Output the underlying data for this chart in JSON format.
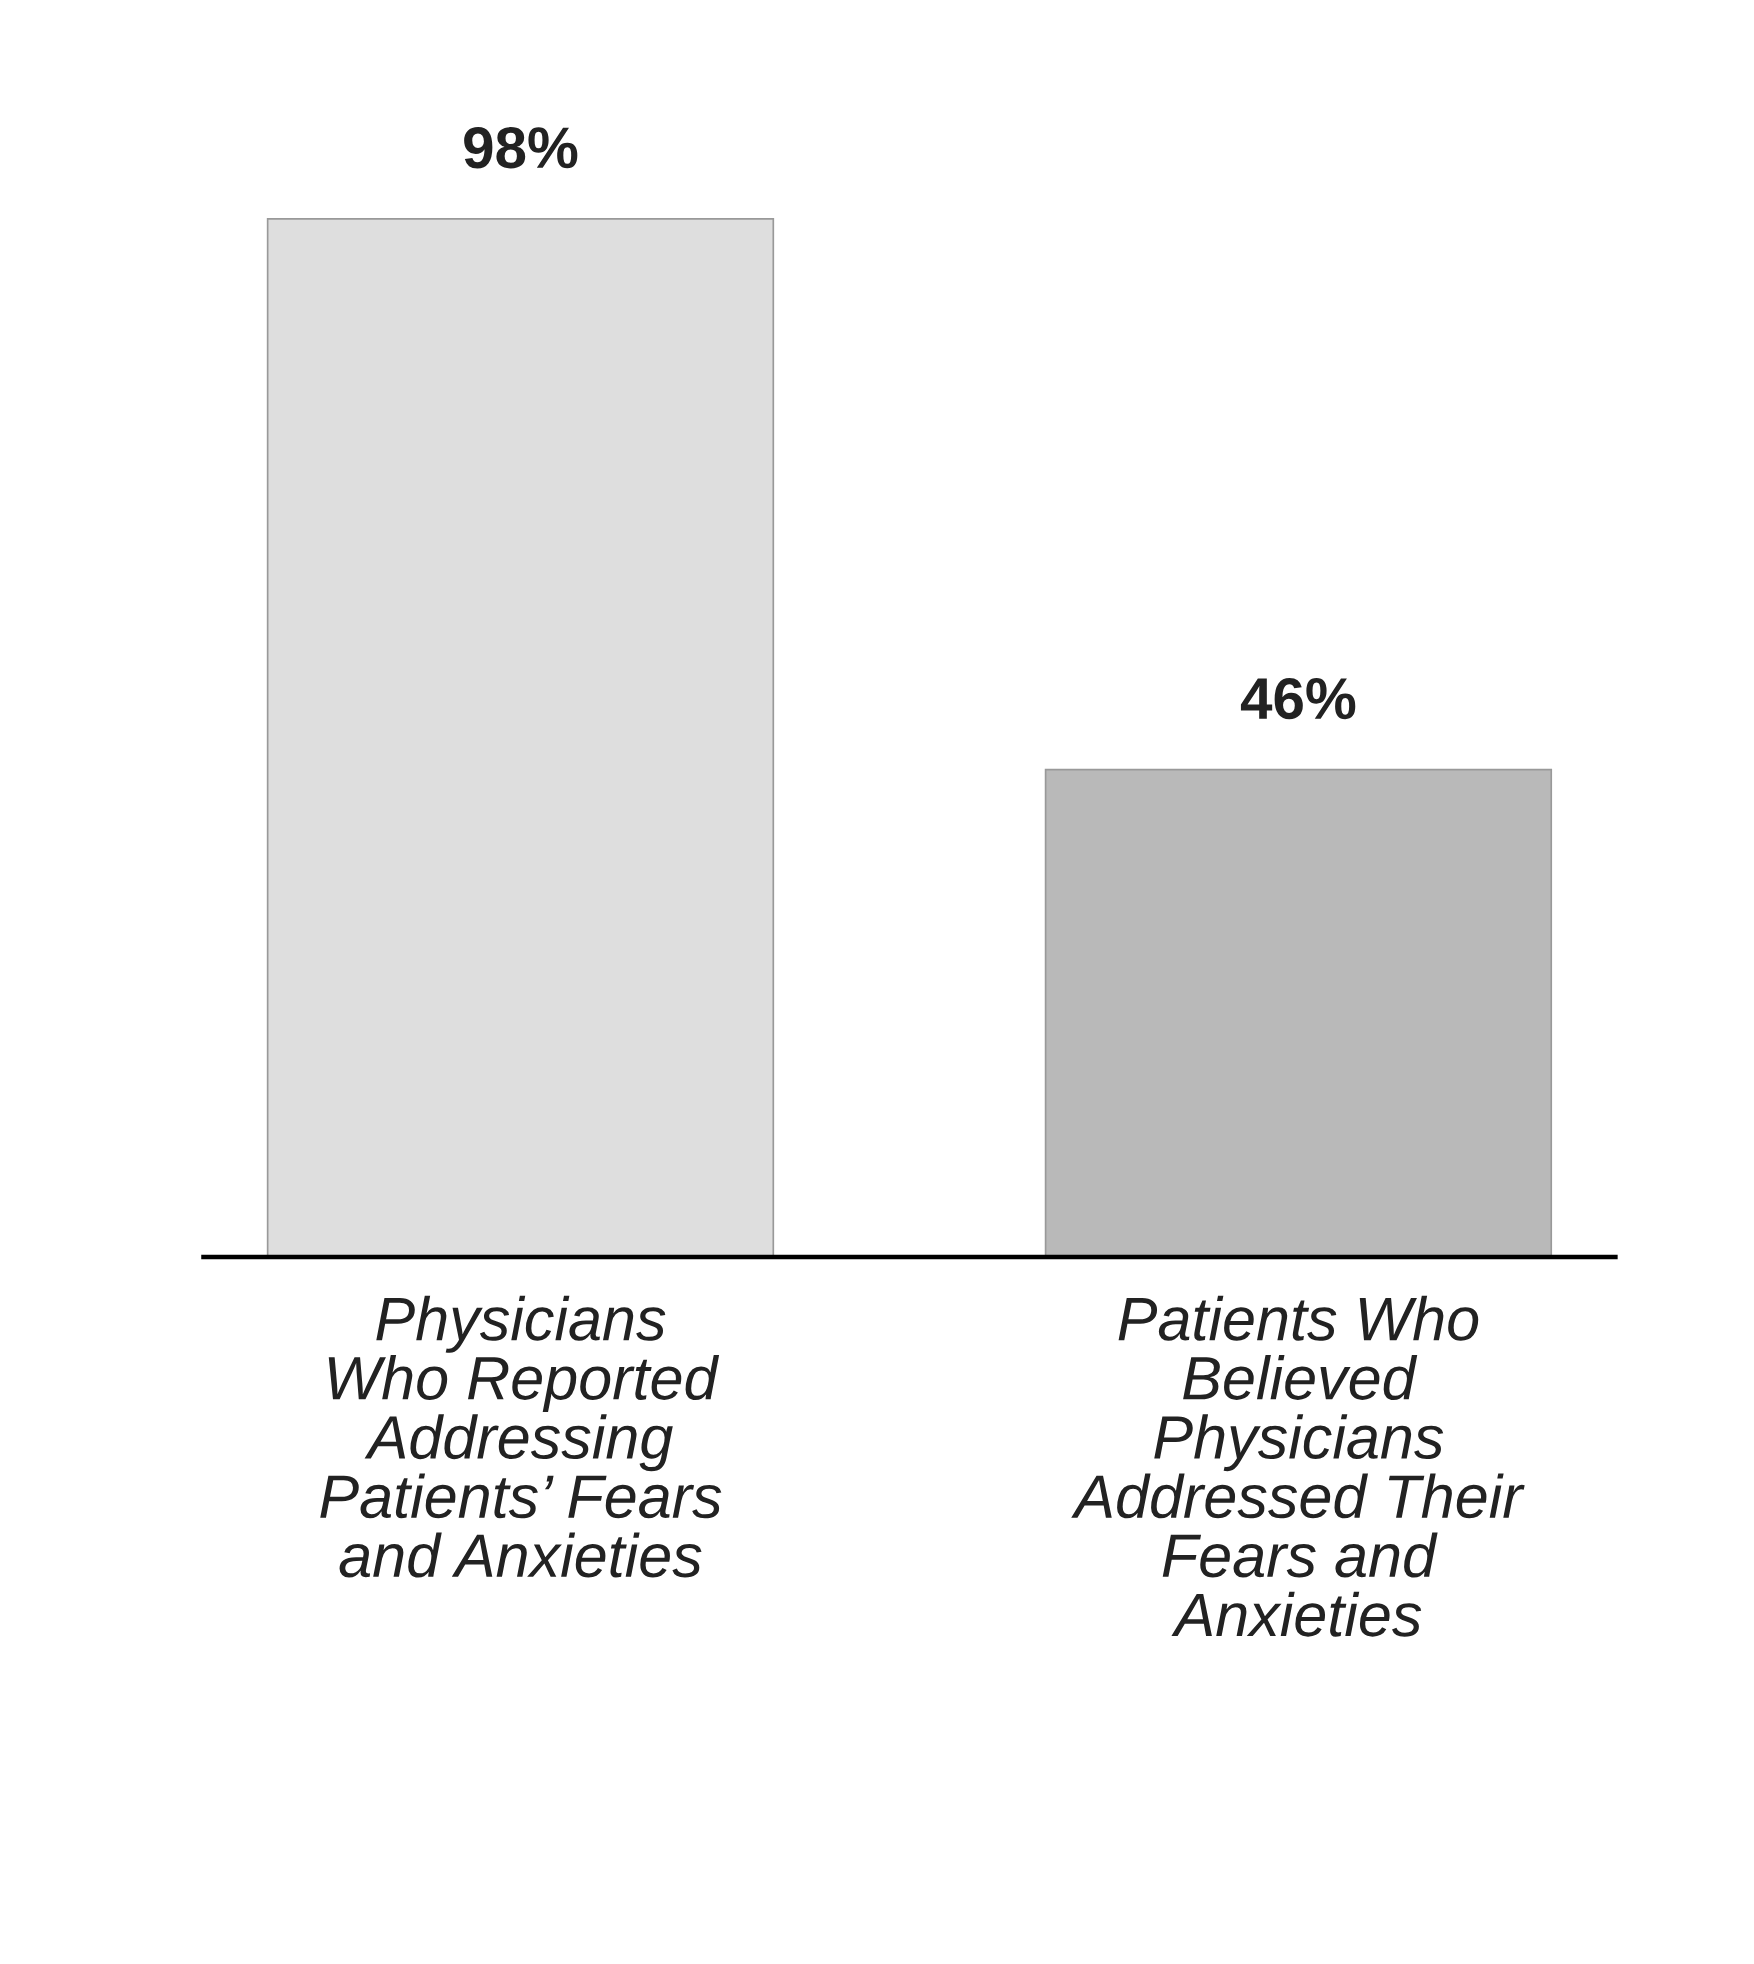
{
  "chart_data": {
    "type": "bar",
    "categories": [
      "Physicians\nWho Reported\nAddressing\nPatients’ Fears\nand Anxieties",
      "Patients Who\nBelieved\nPhysicians\nAddressed Their\nFears and\nAnxieties"
    ],
    "values": [
      98,
      46
    ],
    "colors": [
      "#dedede",
      "#b9b9b9"
    ],
    "value_labels": [
      "98%",
      "46%"
    ],
    "grid": false,
    "legend": false
  }
}
